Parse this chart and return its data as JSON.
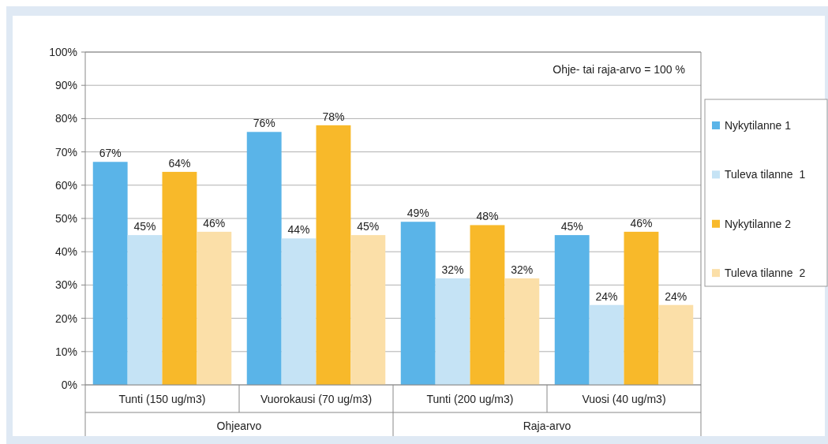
{
  "chart_data": {
    "type": "bar",
    "categories": [
      "Tunti (150 ug/m3)",
      "Vuorokausi (70 ug/m3)",
      "Tunti (200 ug/m3)",
      "Vuosi (40 ug/m3)"
    ],
    "series": [
      {
        "name": "Nykytilanne 1",
        "color": "#5ab4e8",
        "values": [
          67,
          76,
          49,
          45
        ],
        "value_labels": [
          "67%",
          "76%",
          "49%",
          "45%"
        ]
      },
      {
        "name": "Tuleva tilanne  1",
        "color": "#c5e3f5",
        "values": [
          45,
          44,
          32,
          24
        ],
        "value_labels": [
          "45%",
          "44%",
          "32%",
          "24%"
        ]
      },
      {
        "name": "Nykytilanne 2",
        "color": "#f8b92a",
        "values": [
          64,
          78,
          48,
          46
        ],
        "value_labels": [
          "64%",
          "78%",
          "48%",
          "46%"
        ]
      },
      {
        "name": "Tuleva tilanne  2",
        "color": "#fbdfa8",
        "values": [
          46,
          45,
          32,
          24
        ],
        "value_labels": [
          "46%",
          "45%",
          "32%",
          "24%"
        ]
      }
    ],
    "ylim": [
      0,
      100
    ],
    "yticks": [
      {
        "value": 0,
        "label": "0%"
      },
      {
        "value": 10,
        "label": "10%"
      },
      {
        "value": 20,
        "label": "20%"
      },
      {
        "value": 30,
        "label": "30%"
      },
      {
        "value": 40,
        "label": "40%"
      },
      {
        "value": 50,
        "label": "50%"
      },
      {
        "value": 60,
        "label": "60%"
      },
      {
        "value": 70,
        "label": "70%"
      },
      {
        "value": 80,
        "label": "80%"
      },
      {
        "value": 90,
        "label": "90%"
      },
      {
        "value": 100,
        "label": "100%"
      }
    ],
    "grid": "y",
    "legend": "right",
    "annotations": [
      "Ohje- tai raja-arvo = 100 %",
      "Ohjearvo",
      "Raja-arvo"
    ]
  }
}
